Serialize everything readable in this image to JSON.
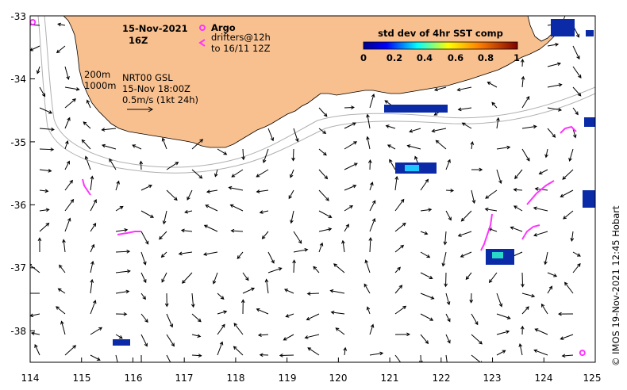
{
  "map": {
    "date": "15-Nov-2021",
    "hour": "16Z",
    "legend_argo": "Argo",
    "legend_drifters_1": "drifters@12h",
    "legend_drifters_2": "to 16/11 12Z",
    "colorbar_title": "std dev of 4hr SST comp",
    "colorbar_ticks": [
      "0",
      "0.2",
      "0.4",
      "0.6",
      "0.8",
      "1"
    ],
    "contour_label_200": "200m",
    "contour_label_1000": "1000m",
    "product_label": "NRT00 GSL",
    "product_time": "15-Nov 18:00Z",
    "scale_label": "0.5m/s (1kt 24h)",
    "credit": "© IMOS 19-Nov-2021 12:45 Hobart",
    "x_ticks": [
      "114",
      "115",
      "116",
      "117",
      "118",
      "119",
      "120",
      "121",
      "122",
      "123",
      "124",
      "125"
    ],
    "y_ticks": [
      "-33",
      "-34",
      "-35",
      "-36",
      "-37",
      "-38"
    ],
    "colors": {
      "land": "#f9c08f",
      "argo": "#ff33ff",
      "drifter": "#ff33ff",
      "contour": "#b0b0b0"
    }
  },
  "chart_data": {
    "type": "map",
    "xlim": [
      114,
      125
    ],
    "ylim": [
      -38.5,
      -33
    ],
    "colorbar_range": [
      0,
      1
    ],
    "argo_floats": [
      [
        114.05,
        -33.1
      ],
      [
        124.75,
        -38.35
      ]
    ]
  }
}
